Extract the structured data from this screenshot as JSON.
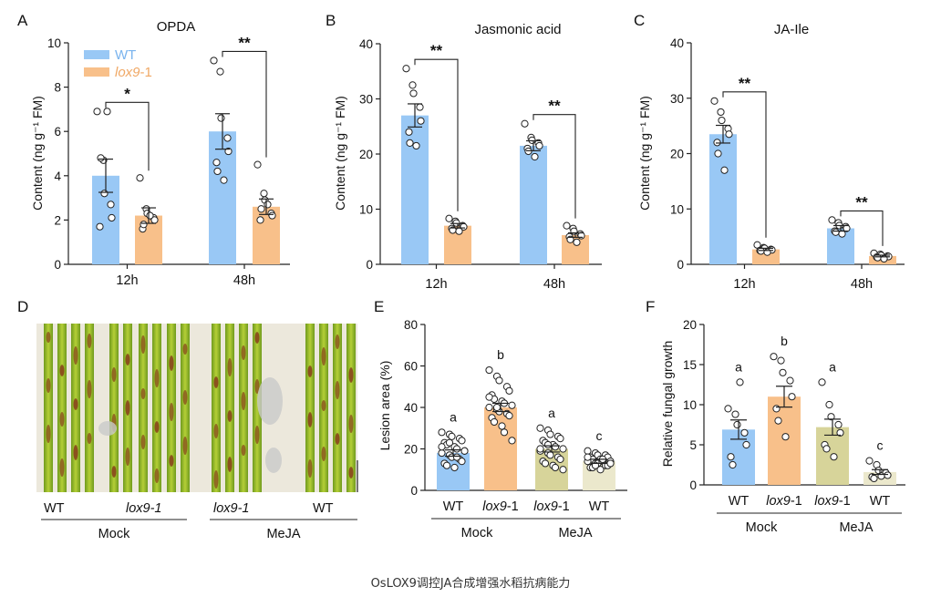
{
  "caption": "OsLOX9调控JA合成增强水稻抗病能力",
  "colors": {
    "wt": "#99c8f5",
    "lox9": "#f8c08a",
    "wt_mejA": "#d7d49a",
    "lox9_mejA": "#ebe8cc"
  },
  "panels": {
    "A": {
      "letter": "A",
      "title": "OPDA",
      "ylabel": "Content (ng g⁻¹ FM)",
      "yticks": [
        "0",
        "2",
        "4",
        "6",
        "8",
        "10"
      ]
    },
    "B": {
      "letter": "B",
      "title": "Jasmonic acid",
      "ylabel": "Content (ng g⁻¹ FM)",
      "yticks": [
        "0",
        "10",
        "20",
        "30",
        "40"
      ]
    },
    "C": {
      "letter": "C",
      "title": "JA-Ile",
      "ylabel": "Content (ng g⁻¹ FM)",
      "yticks": [
        "0",
        "10",
        "20",
        "30",
        "40"
      ]
    },
    "D": {
      "letter": "D",
      "labels": [
        "WT",
        "lox9-1",
        "lox9-1",
        "WT"
      ],
      "groups": [
        "Mock",
        "MeJA"
      ]
    },
    "E": {
      "letter": "E",
      "ylabel": "Lesion area (%)",
      "yticks": [
        "0",
        "20",
        "40",
        "60",
        "80"
      ]
    },
    "F": {
      "letter": "F",
      "ylabel": "Relative fungal growth",
      "yticks": [
        "0",
        "5",
        "10",
        "15",
        "20"
      ]
    }
  },
  "legend": {
    "wt": "WT",
    "lox9_pre": "lox9",
    "lox9_post": "-1"
  },
  "chart_data": [
    {
      "id": "A",
      "type": "bar",
      "title": "OPDA",
      "ylabel": "Content (ng g-1 FM)",
      "ylim": [
        0,
        10
      ],
      "categories": [
        "12h",
        "48h"
      ],
      "series": [
        {
          "name": "WT",
          "values": [
            4.0,
            6.0
          ],
          "err": [
            0.75,
            0.8
          ],
          "points": [
            [
              6.9,
              4.7,
              3.2,
              2.7,
              2.1,
              1.7,
              4.8,
              6.9
            ],
            [
              9.2,
              8.7,
              6.6,
              5.7,
              5.1,
              4.6,
              4.2,
              3.8
            ]
          ]
        },
        {
          "name": "lox9-1",
          "values": [
            2.2,
            2.6
          ],
          "err": [
            0.35,
            0.35
          ],
          "points": [
            [
              3.9,
              2.5,
              2.3,
              2.1,
              2.0,
              1.6,
              1.8,
              2.2
            ],
            [
              4.5,
              3.2,
              2.9,
              2.3,
              2.2,
              2.0,
              2.5,
              2.7
            ]
          ]
        }
      ],
      "significance": [
        "*",
        "**"
      ]
    },
    {
      "id": "B",
      "type": "bar",
      "title": "Jasmonic acid",
      "ylabel": "Content (ng g-1 FM)",
      "ylim": [
        0,
        40
      ],
      "categories": [
        "12h",
        "48h"
      ],
      "series": [
        {
          "name": "WT",
          "values": [
            27.0,
            21.5
          ],
          "err": [
            2.1,
            0.9
          ],
          "points": [
            [
              35.5,
              32.5,
              31.0,
              28.5,
              26.0,
              24.0,
              22.0,
              21.5
            ],
            [
              25.5,
              23.0,
              22.5,
              22.0,
              21.5,
              21.0,
              20.5,
              19.5
            ]
          ]
        },
        {
          "name": "lox9-1",
          "values": [
            7.0,
            5.3
          ],
          "err": [
            0.4,
            0.4
          ],
          "points": [
            [
              8.3,
              7.8,
              7.5,
              7.0,
              6.8,
              6.5,
              6.2,
              6.0
            ],
            [
              7.0,
              6.5,
              6.0,
              5.5,
              5.2,
              5.0,
              4.5,
              4.0
            ]
          ]
        }
      ],
      "significance": [
        "**",
        "**"
      ]
    },
    {
      "id": "C",
      "type": "bar",
      "title": "JA-Ile",
      "ylabel": "Content (ng g-1 FM)",
      "ylim": [
        0,
        40
      ],
      "categories": [
        "12h",
        "48h"
      ],
      "series": [
        {
          "name": "WT",
          "values": [
            23.5,
            6.5
          ],
          "err": [
            1.6,
            0.5
          ],
          "points": [
            [
              29.5,
              27.5,
              26.0,
              24.5,
              23.5,
              22.0,
              20.0,
              17.0
            ],
            [
              8.0,
              7.5,
              7.0,
              6.8,
              6.5,
              6.0,
              5.8,
              5.5
            ]
          ]
        },
        {
          "name": "lox9-1",
          "values": [
            2.7,
            1.5
          ],
          "err": [
            0.2,
            0.15
          ],
          "points": [
            [
              3.5,
              3.0,
              2.9,
              2.7,
              2.6,
              2.5,
              2.4,
              2.2
            ],
            [
              2.0,
              1.8,
              1.6,
              1.5,
              1.4,
              1.3,
              1.2,
              1.0
            ]
          ]
        }
      ],
      "significance": [
        "**",
        "**"
      ]
    },
    {
      "id": "E",
      "type": "bar",
      "ylabel": "Lesion area (%)",
      "ylim": [
        0,
        80
      ],
      "categories": [
        "WT",
        "lox9-1",
        "lox9-1",
        "WT"
      ],
      "groups": [
        "Mock",
        "Mock",
        "MeJA",
        "MeJA"
      ],
      "values": [
        18,
        40,
        20,
        14
      ],
      "err": [
        1.5,
        2.0,
        1.5,
        1.0
      ],
      "letters": [
        "a",
        "b",
        "a",
        "c"
      ],
      "points": [
        [
          28,
          27,
          26,
          25,
          24,
          23,
          22,
          21,
          20,
          19,
          18,
          17,
          16,
          15,
          14,
          13,
          12,
          11,
          16,
          19,
          21,
          23
        ],
        [
          58,
          55,
          53,
          50,
          48,
          46,
          44,
          43,
          42,
          41,
          40,
          39,
          38,
          37,
          36,
          35,
          33,
          31,
          28,
          24,
          45,
          40
        ],
        [
          30,
          29,
          27,
          26,
          25,
          24,
          23,
          22,
          21,
          20,
          19,
          18,
          17,
          16,
          15,
          14,
          13,
          12,
          11,
          10,
          20,
          22
        ],
        [
          19,
          18,
          17,
          17,
          16,
          16,
          15,
          15,
          14,
          14,
          14,
          13,
          13,
          12,
          12,
          11,
          11,
          10,
          15,
          13,
          16,
          12
        ]
      ]
    },
    {
      "id": "F",
      "type": "bar",
      "ylabel": "Relative fungal growth",
      "ylim": [
        0,
        20
      ],
      "categories": [
        "WT",
        "lox9-1",
        "lox9-1",
        "WT"
      ],
      "groups": [
        "Mock",
        "Mock",
        "MeJA",
        "MeJA"
      ],
      "values": [
        6.9,
        11.0,
        7.2,
        1.6
      ],
      "err": [
        1.2,
        1.3,
        1.0,
        0.3
      ],
      "letters": [
        "a",
        "b",
        "a",
        "c"
      ],
      "points": [
        [
          9.5,
          8.8,
          7.5,
          6.5,
          5.0,
          3.5,
          2.5,
          12.8
        ],
        [
          16.0,
          15.5,
          14.0,
          13.0,
          11.0,
          9.5,
          8.0,
          6.0
        ],
        [
          12.8,
          10.0,
          8.5,
          7.5,
          6.5,
          5.0,
          4.5,
          3.5
        ],
        [
          3.0,
          2.5,
          1.8,
          1.5,
          1.2,
          1.0,
          0.8,
          1.1
        ]
      ]
    }
  ]
}
